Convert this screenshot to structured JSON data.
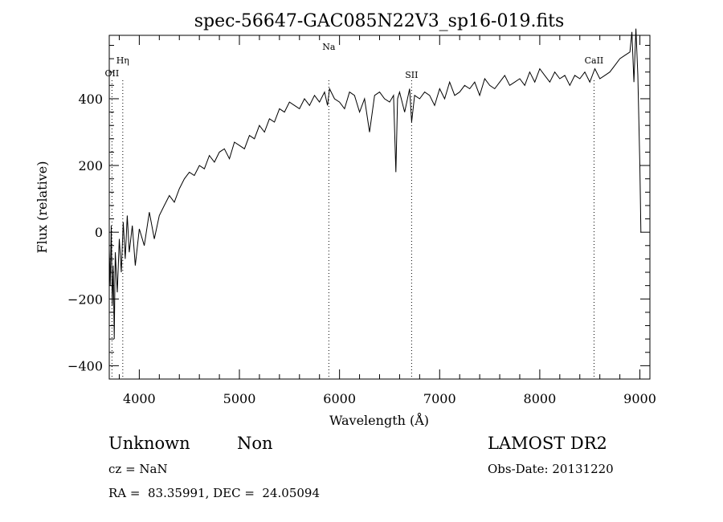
{
  "chart_data": {
    "type": "line",
    "title": "spec-56647-GAC085N22V3_sp16-019.fits",
    "xlabel": "Wavelength (Å)",
    "ylabel": "Flux (relative)",
    "xlim": [
      3700,
      9100
    ],
    "ylim": [
      -440,
      590
    ],
    "x_ticks": [
      4000,
      5000,
      6000,
      7000,
      8000,
      9000
    ],
    "y_ticks": [
      -400,
      -200,
      0,
      200,
      400
    ],
    "x_tick_labels": [
      "4000",
      "5000",
      "6000",
      "7000",
      "8000",
      "9000"
    ],
    "y_tick_labels": [
      "−400",
      "−200",
      "0",
      "200",
      "400"
    ],
    "grid": false,
    "series": [
      {
        "color": "#000000",
        "x": [
          3700,
          3710,
          3720,
          3730,
          3740,
          3750,
          3760,
          3780,
          3800,
          3820,
          3840,
          3860,
          3880,
          3900,
          3930,
          3960,
          4000,
          4050,
          4100,
          4150,
          4200,
          4250,
          4300,
          4350,
          4400,
          4450,
          4500,
          4550,
          4600,
          4650,
          4700,
          4750,
          4800,
          4850,
          4900,
          4950,
          5000,
          5050,
          5100,
          5150,
          5200,
          5250,
          5300,
          5350,
          5400,
          5450,
          5500,
          5550,
          5600,
          5650,
          5700,
          5750,
          5800,
          5850,
          5880,
          5900,
          5950,
          6000,
          6050,
          6100,
          6150,
          6200,
          6250,
          6300,
          6350,
          6400,
          6450,
          6500,
          6540,
          6563,
          6580,
          6600,
          6650,
          6700,
          6720,
          6750,
          6800,
          6850,
          6900,
          6950,
          7000,
          7050,
          7100,
          7150,
          7200,
          7250,
          7300,
          7350,
          7400,
          7450,
          7500,
          7550,
          7600,
          7650,
          7700,
          7750,
          7800,
          7850,
          7900,
          7950,
          8000,
          8050,
          8100,
          8150,
          8200,
          8250,
          8300,
          8350,
          8400,
          8450,
          8500,
          8550,
          8600,
          8650,
          8700,
          8750,
          8800,
          8850,
          8900,
          8920,
          8940,
          8960,
          8980,
          9000,
          9010
        ],
        "y": [
          -50,
          -160,
          20,
          -220,
          -100,
          -320,
          -60,
          -180,
          -20,
          -120,
          30,
          -80,
          50,
          -60,
          20,
          -100,
          10,
          -40,
          60,
          -20,
          50,
          80,
          110,
          90,
          130,
          160,
          180,
          170,
          200,
          190,
          230,
          210,
          240,
          250,
          220,
          270,
          260,
          250,
          290,
          280,
          320,
          300,
          340,
          330,
          370,
          360,
          390,
          380,
          370,
          400,
          380,
          410,
          390,
          420,
          380,
          430,
          400,
          390,
          370,
          420,
          410,
          360,
          400,
          300,
          410,
          420,
          400,
          390,
          410,
          180,
          400,
          420,
          360,
          430,
          330,
          410,
          400,
          420,
          410,
          380,
          430,
          400,
          450,
          410,
          420,
          440,
          430,
          450,
          410,
          460,
          440,
          430,
          450,
          470,
          440,
          450,
          460,
          440,
          480,
          450,
          490,
          470,
          450,
          480,
          460,
          470,
          440,
          470,
          460,
          480,
          450,
          490,
          460,
          470,
          480,
          500,
          520,
          530,
          540,
          600,
          450,
          610,
          470,
          200,
          0
        ]
      }
    ],
    "emission_lines": [
      {
        "label": "OII",
        "x": 3727
      },
      {
        "label": "Hη",
        "x": 3835
      },
      {
        "label": "Na",
        "x": 5893
      },
      {
        "label": "SII",
        "x": 6720
      },
      {
        "label": "CaII",
        "x": 8542
      }
    ]
  },
  "footer": {
    "class_label": "Unknown",
    "subclass_label": "Non",
    "cz_text": "cz = NaN",
    "coords_text": "RA =  83.35991, DEC =  24.05094",
    "survey_label": "LAMOST DR2",
    "obs_date_text": "Obs-Date: 20131220"
  }
}
